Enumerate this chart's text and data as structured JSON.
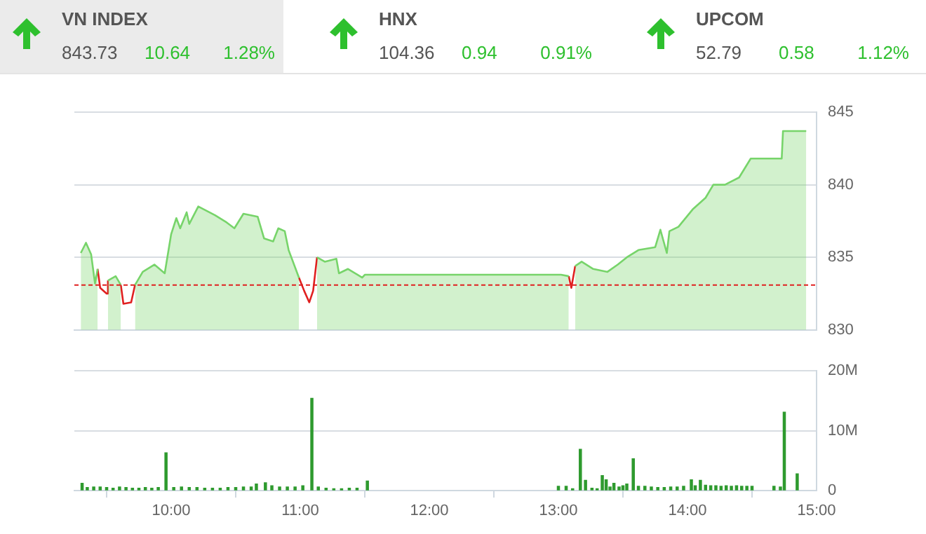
{
  "chart_data": [
    {
      "type": "other",
      "annotations": [
        "VN INDEX",
        "843.73",
        "10.64",
        "1.28%",
        "HNX",
        "104.36",
        "0.94",
        "0.91%",
        "UPCOM",
        "52.79",
        "0.58",
        "1.12%"
      ]
    },
    {
      "type": "area",
      "tick_labels": "y",
      "grid": "y",
      "legend": false,
      "xlim": [
        9.25,
        15
      ],
      "ylim": [
        830,
        845
      ],
      "yticks": [
        830,
        835,
        840,
        845
      ],
      "ref_lines": [
        {
          "axis": "y",
          "value": 833.09,
          "color": "#e02020",
          "line_style": "dashed"
        }
      ],
      "x": [
        9.3,
        9.34,
        9.38,
        9.41,
        9.43,
        9.45,
        9.5,
        9.51,
        9.57,
        9.61,
        9.63,
        9.69,
        9.72,
        9.78,
        9.87,
        9.95,
        10.0,
        10.04,
        10.07,
        10.12,
        10.14,
        10.21,
        10.34,
        10.43,
        10.49,
        10.56,
        10.67,
        10.72,
        10.79,
        10.83,
        10.88,
        10.91,
        10.99,
        11.03,
        11.07,
        11.1,
        11.13,
        11.19,
        11.28,
        11.3,
        11.37,
        11.48,
        11.5,
        13.02,
        13.08,
        13.1,
        13.13,
        13.18,
        13.27,
        13.38,
        13.46,
        13.53,
        13.62,
        13.75,
        13.79,
        13.84,
        13.86,
        13.93,
        14.04,
        14.14,
        14.2,
        14.29,
        14.4,
        14.49,
        14.73,
        14.74,
        14.92
      ],
      "series": [
        {
          "color": "#77d46a",
          "values": [
            835.3,
            836.0,
            835.2,
            833.2,
            834.2,
            null,
            null,
            833.4,
            833.7,
            833.1,
            null,
            null,
            833.1,
            834.0,
            834.5,
            833.9,
            836.6,
            837.7,
            837.0,
            838.1,
            837.3,
            838.5,
            837.9,
            837.4,
            837.0,
            838.0,
            837.8,
            836.3,
            836.1,
            837.0,
            836.8,
            835.5,
            833.6,
            null,
            null,
            null,
            835.0,
            834.7,
            834.9,
            833.9,
            834.2,
            833.6,
            833.8,
            833.8,
            833.7,
            null,
            834.4,
            834.7,
            834.2,
            834.0,
            834.5,
            835.0,
            835.5,
            835.7,
            836.9,
            835.3,
            836.8,
            837.1,
            838.3,
            839.1,
            840.0,
            840.0,
            840.5,
            841.8,
            841.8,
            843.7,
            843.7
          ]
        },
        {
          "type": "line",
          "color": "#e02020",
          "values": [
            null,
            null,
            null,
            null,
            834.2,
            832.9,
            832.5,
            833.4,
            null,
            833.1,
            831.8,
            831.9,
            833.1,
            null,
            null,
            null,
            null,
            null,
            null,
            null,
            null,
            null,
            null,
            null,
            null,
            null,
            null,
            null,
            null,
            null,
            null,
            null,
            833.6,
            832.7,
            831.9,
            832.7,
            835.0,
            null,
            null,
            null,
            null,
            null,
            null,
            null,
            833.7,
            832.9,
            834.4,
            null,
            null,
            null,
            null,
            null,
            null,
            null,
            null,
            null,
            null,
            null,
            null,
            null,
            null,
            null,
            null,
            null,
            null,
            null,
            null
          ]
        }
      ]
    },
    {
      "type": "bar",
      "grid": "y",
      "legend": false,
      "xlim": [
        9.25,
        15
      ],
      "xticks": [
        {
          "value": 10,
          "label": "10:00"
        },
        {
          "value": 11,
          "label": "11:00"
        },
        {
          "value": 12,
          "label": "12:00"
        },
        {
          "value": 13,
          "label": "13:00"
        },
        {
          "value": 14,
          "label": "14:00"
        },
        {
          "value": 15,
          "label": "15:00"
        }
      ],
      "ylim": [
        0,
        20
      ],
      "yticks": [
        0,
        {
          "value": 10,
          "label": "10M"
        },
        {
          "value": 20,
          "label": "20M"
        }
      ],
      "x": [
        9.31,
        9.35,
        9.4,
        9.45,
        9.5,
        9.55,
        9.6,
        9.65,
        9.7,
        9.75,
        9.8,
        9.85,
        9.9,
        9.96,
        10.02,
        10.08,
        10.14,
        10.2,
        10.26,
        10.32,
        10.38,
        10.44,
        10.5,
        10.56,
        10.62,
        10.66,
        10.73,
        10.78,
        10.84,
        10.9,
        10.96,
        11.02,
        11.09,
        11.14,
        11.2,
        11.26,
        11.32,
        11.38,
        11.44,
        11.52,
        13.0,
        13.06,
        13.11,
        13.17,
        13.21,
        13.26,
        13.3,
        13.34,
        13.37,
        13.4,
        13.43,
        13.47,
        13.5,
        13.53,
        13.58,
        13.62,
        13.67,
        13.72,
        13.77,
        13.82,
        13.87,
        13.92,
        13.97,
        14.03,
        14.06,
        14.1,
        14.14,
        14.18,
        14.22,
        14.26,
        14.3,
        14.34,
        14.38,
        14.42,
        14.46,
        14.5,
        14.67,
        14.72,
        14.75,
        14.85
      ],
      "series": [
        {
          "color": "#2e9a2e",
          "values": [
            1.2,
            0.5,
            0.6,
            0.6,
            0.5,
            0.4,
            0.6,
            0.5,
            0.4,
            0.4,
            0.5,
            0.4,
            0.5,
            6.3,
            0.5,
            0.6,
            0.5,
            0.5,
            0.4,
            0.4,
            0.4,
            0.5,
            0.5,
            0.6,
            0.6,
            1.1,
            1.3,
            0.8,
            0.6,
            0.6,
            0.6,
            0.8,
            15.4,
            0.6,
            0.4,
            0.3,
            0.3,
            0.4,
            0.4,
            1.6,
            0.7,
            0.7,
            0.3,
            6.9,
            1.7,
            0.4,
            0.3,
            2.5,
            1.8,
            0.6,
            1.2,
            0.6,
            0.8,
            1.1,
            5.3,
            0.7,
            0.7,
            0.6,
            0.5,
            0.5,
            0.6,
            0.6,
            0.7,
            1.8,
            0.8,
            1.7,
            0.9,
            0.8,
            0.8,
            0.7,
            0.8,
            0.7,
            0.8,
            0.7,
            0.7,
            0.7,
            0.7,
            0.6,
            13.1,
            2.8
          ]
        }
      ]
    }
  ]
}
